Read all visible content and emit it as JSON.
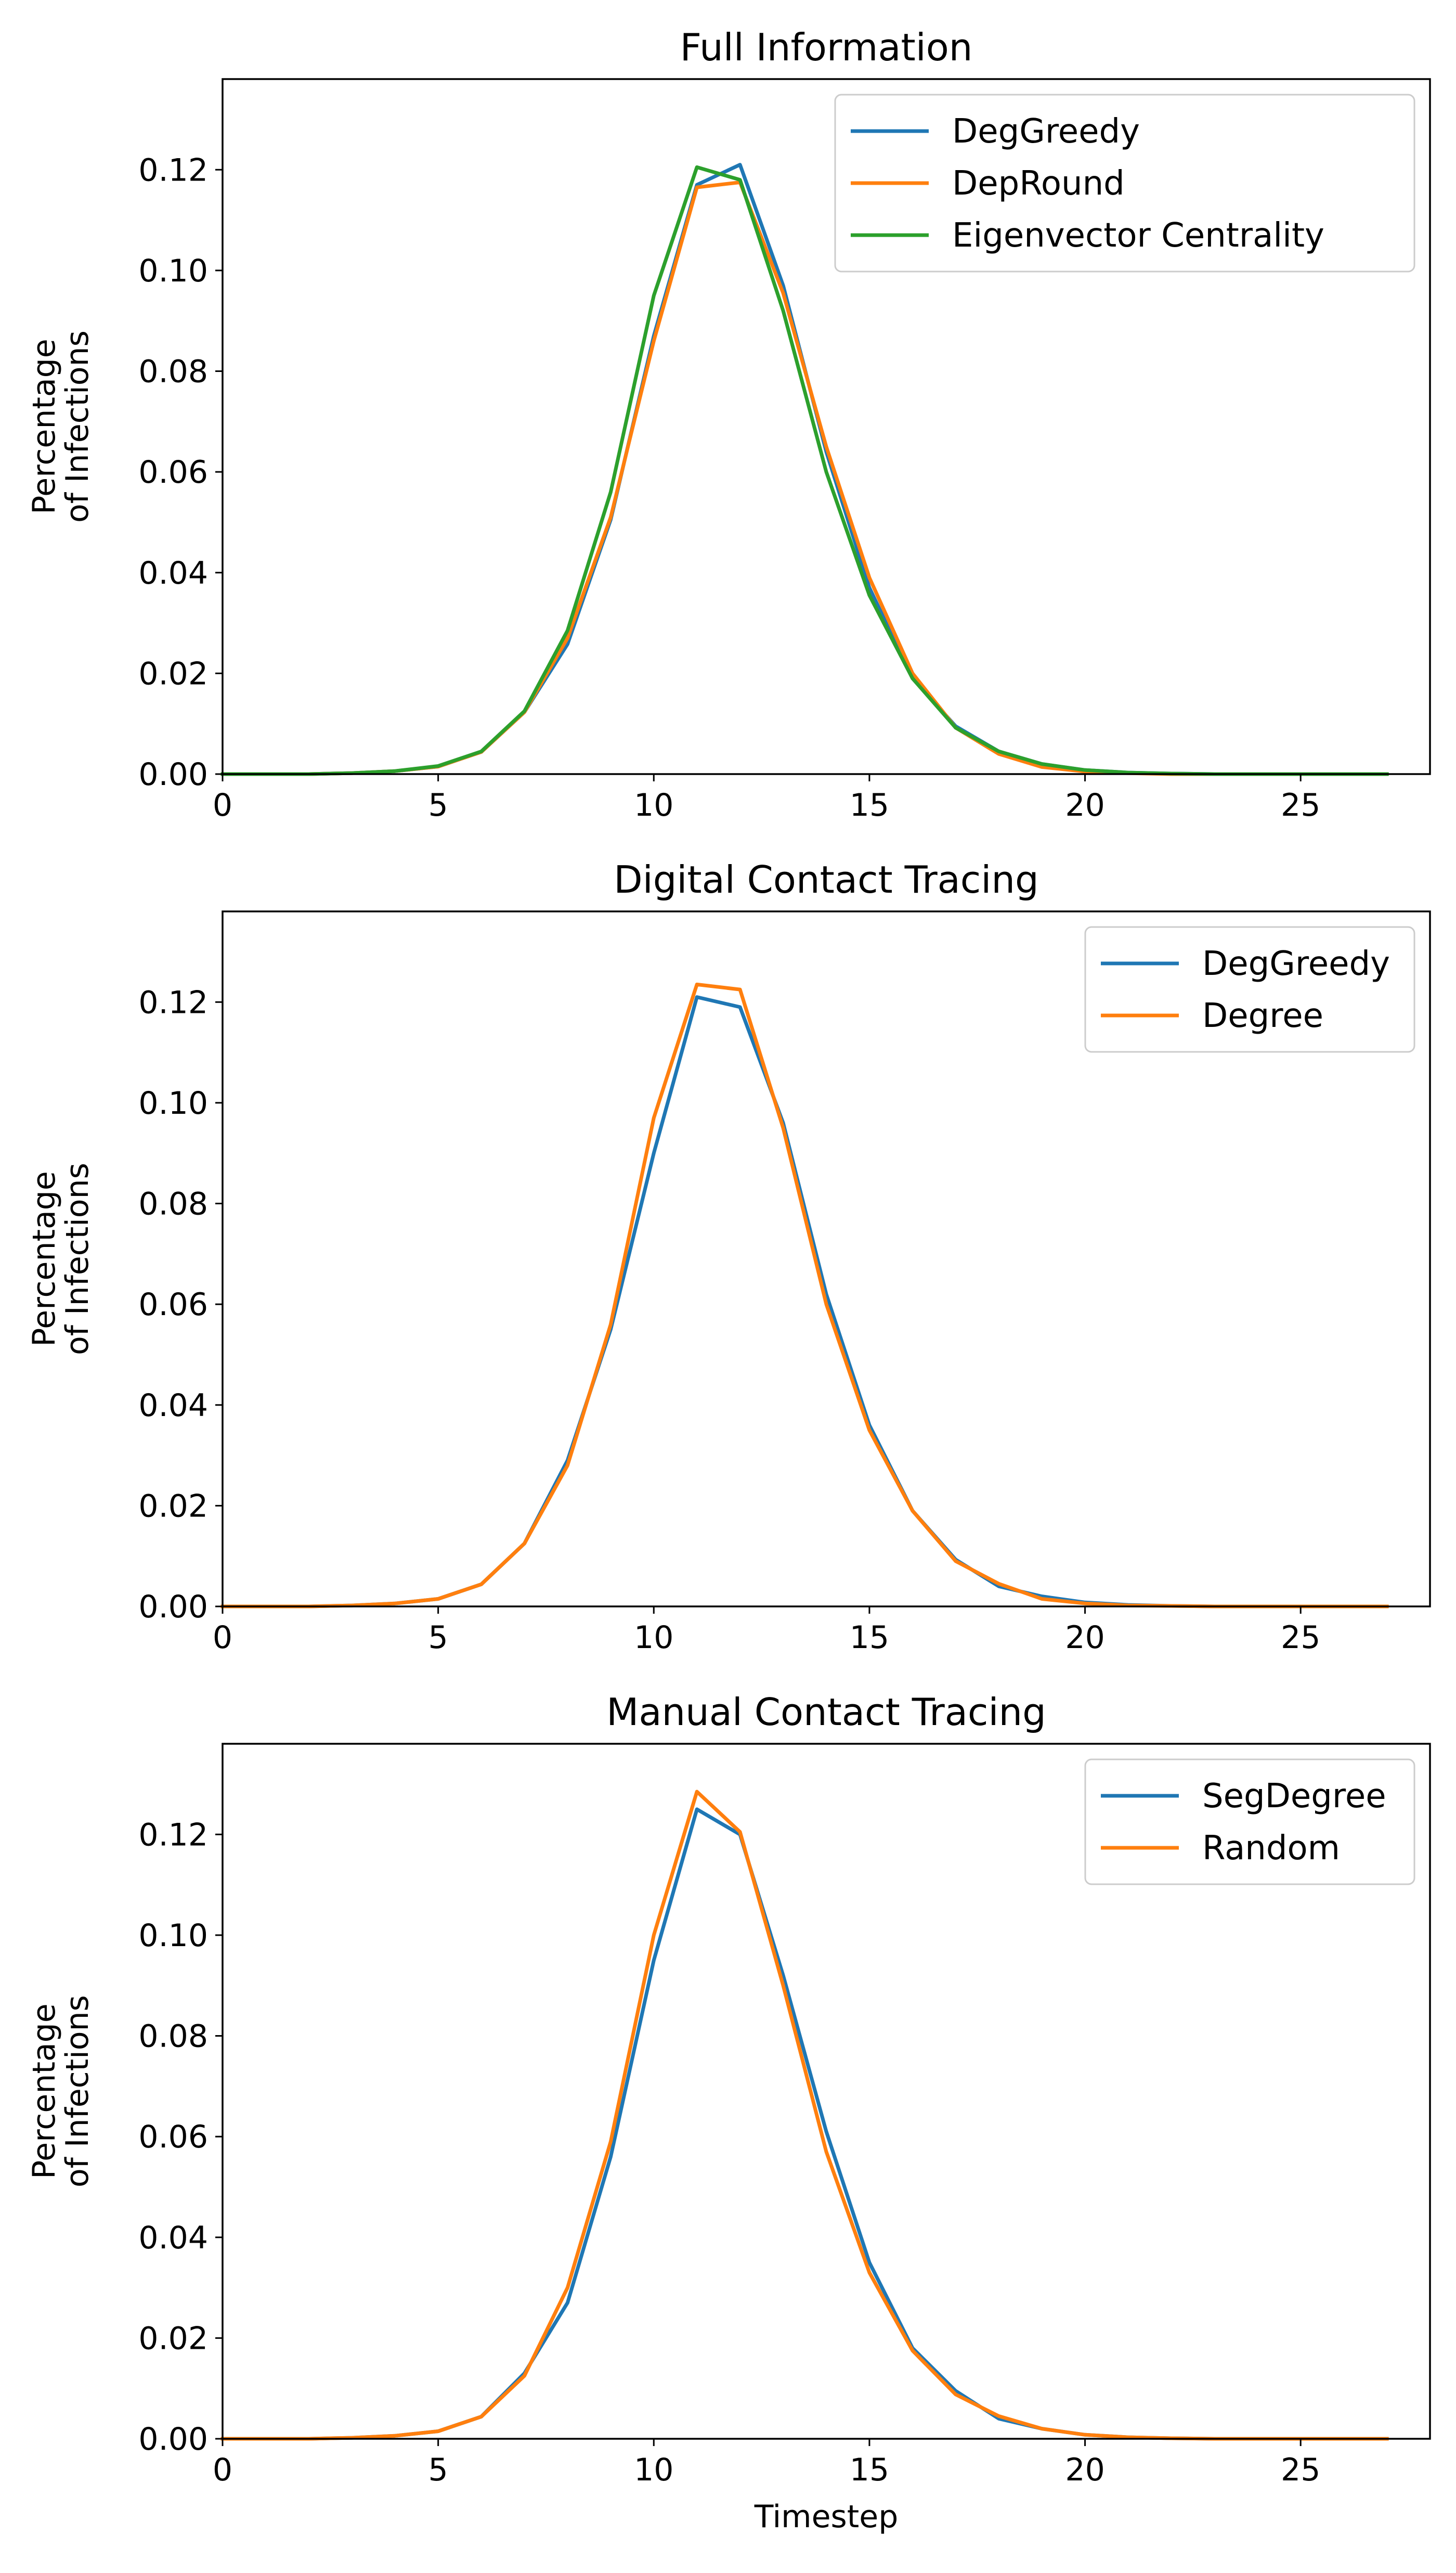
{
  "chart_data": [
    {
      "type": "line",
      "title": "Full Information",
      "xlabel": "",
      "ylabel": [
        "Percentage",
        "of Infections"
      ],
      "xlim": [
        0,
        28
      ],
      "ylim": [
        0,
        0.138
      ],
      "xticks": [
        0,
        5,
        10,
        15,
        20,
        25
      ],
      "yticks": [
        0.0,
        0.02,
        0.04,
        0.06,
        0.08,
        0.1,
        0.12
      ],
      "grid": false,
      "legend_position": "upper right",
      "x": [
        0,
        1,
        2,
        3,
        4,
        5,
        6,
        7,
        8,
        9,
        10,
        11,
        12,
        13,
        14,
        15,
        16,
        17,
        18,
        19,
        20,
        21,
        22,
        23,
        24,
        25,
        26,
        27
      ],
      "series": [
        {
          "name": "DegGreedy",
          "color": "#1f77b4",
          "values": [
            0.0,
            0.0,
            0.0,
            0.0002,
            0.0006,
            0.0015,
            0.0044,
            0.0123,
            0.0258,
            0.0505,
            0.087,
            0.117,
            0.121,
            0.097,
            0.064,
            0.037,
            0.019,
            0.0095,
            0.0045,
            0.002,
            0.0008,
            0.0003,
            0.0001,
            0.0,
            0.0,
            0.0,
            0.0,
            0.0
          ]
        },
        {
          "name": "DepRound",
          "color": "#ff7f0e",
          "values": [
            0.0,
            0.0,
            0.0,
            0.0002,
            0.0006,
            0.0015,
            0.0044,
            0.0123,
            0.027,
            0.051,
            0.086,
            0.1165,
            0.1175,
            0.0955,
            0.065,
            0.039,
            0.02,
            0.0092,
            0.004,
            0.0014,
            0.0005,
            0.0002,
            0.0,
            0.0,
            0.0,
            0.0,
            0.0,
            0.0
          ]
        },
        {
          "name": "Eigenvector Centrality",
          "color": "#2ca02c",
          "values": [
            0.0,
            0.0,
            0.0,
            0.0002,
            0.0006,
            0.0016,
            0.0045,
            0.0125,
            0.0285,
            0.056,
            0.095,
            0.1205,
            0.118,
            0.092,
            0.06,
            0.0355,
            0.019,
            0.0092,
            0.0045,
            0.002,
            0.0008,
            0.0003,
            0.0001,
            0.0,
            0.0,
            0.0,
            0.0,
            0.0
          ]
        }
      ]
    },
    {
      "type": "line",
      "title": "Digital Contact Tracing",
      "xlabel": "",
      "ylabel": [
        "Percentage",
        "of Infections"
      ],
      "xlim": [
        0,
        28
      ],
      "ylim": [
        0,
        0.138
      ],
      "xticks": [
        0,
        5,
        10,
        15,
        20,
        25
      ],
      "yticks": [
        0.0,
        0.02,
        0.04,
        0.06,
        0.08,
        0.1,
        0.12
      ],
      "grid": false,
      "legend_position": "upper right",
      "x": [
        0,
        1,
        2,
        3,
        4,
        5,
        6,
        7,
        8,
        9,
        10,
        11,
        12,
        13,
        14,
        15,
        16,
        17,
        18,
        19,
        20,
        21,
        22,
        23,
        24,
        25,
        26,
        27
      ],
      "series": [
        {
          "name": "DegGreedy",
          "color": "#1f77b4",
          "values": [
            0.0,
            0.0,
            0.0,
            0.0002,
            0.0006,
            0.0015,
            0.0044,
            0.0125,
            0.029,
            0.055,
            0.09,
            0.121,
            0.119,
            0.096,
            0.062,
            0.036,
            0.019,
            0.0093,
            0.004,
            0.002,
            0.0008,
            0.0003,
            0.0001,
            0.0,
            0.0,
            0.0,
            0.0,
            0.0
          ]
        },
        {
          "name": "Degree",
          "color": "#ff7f0e",
          "values": [
            0.0,
            0.0,
            0.0,
            0.0002,
            0.0006,
            0.0015,
            0.0044,
            0.0125,
            0.028,
            0.056,
            0.097,
            0.1235,
            0.1225,
            0.095,
            0.06,
            0.035,
            0.019,
            0.009,
            0.0045,
            0.0015,
            0.0006,
            0.0002,
            0.0001,
            0.0,
            0.0,
            0.0,
            0.0,
            0.0
          ]
        }
      ]
    },
    {
      "type": "line",
      "title": "Manual Contact Tracing",
      "xlabel": "Timestep",
      "ylabel": [
        "Percentage",
        "of Infections"
      ],
      "xlim": [
        0,
        28
      ],
      "ylim": [
        0,
        0.138
      ],
      "xticks": [
        0,
        5,
        10,
        15,
        20,
        25
      ],
      "yticks": [
        0.0,
        0.02,
        0.04,
        0.06,
        0.08,
        0.1,
        0.12
      ],
      "grid": false,
      "legend_position": "upper right",
      "x": [
        0,
        1,
        2,
        3,
        4,
        5,
        6,
        7,
        8,
        9,
        10,
        11,
        12,
        13,
        14,
        15,
        16,
        17,
        18,
        19,
        20,
        21,
        22,
        23,
        24,
        25,
        26,
        27
      ],
      "series": [
        {
          "name": "SegDegree",
          "color": "#1f77b4",
          "values": [
            0.0,
            0.0,
            0.0,
            0.0002,
            0.0006,
            0.0015,
            0.0044,
            0.013,
            0.027,
            0.056,
            0.095,
            0.125,
            0.12,
            0.092,
            0.061,
            0.035,
            0.018,
            0.0095,
            0.004,
            0.002,
            0.0008,
            0.0003,
            0.0001,
            0.0,
            0.0,
            0.0,
            0.0,
            0.0
          ]
        },
        {
          "name": "Random",
          "color": "#ff7f0e",
          "values": [
            0.0,
            0.0,
            0.0,
            0.0002,
            0.0006,
            0.0015,
            0.0044,
            0.0125,
            0.03,
            0.059,
            0.1,
            0.1285,
            0.1205,
            0.09,
            0.057,
            0.033,
            0.0175,
            0.0088,
            0.0045,
            0.002,
            0.0008,
            0.0003,
            0.0001,
            0.0,
            0.0,
            0.0,
            0.0,
            0.0
          ]
        }
      ]
    }
  ]
}
